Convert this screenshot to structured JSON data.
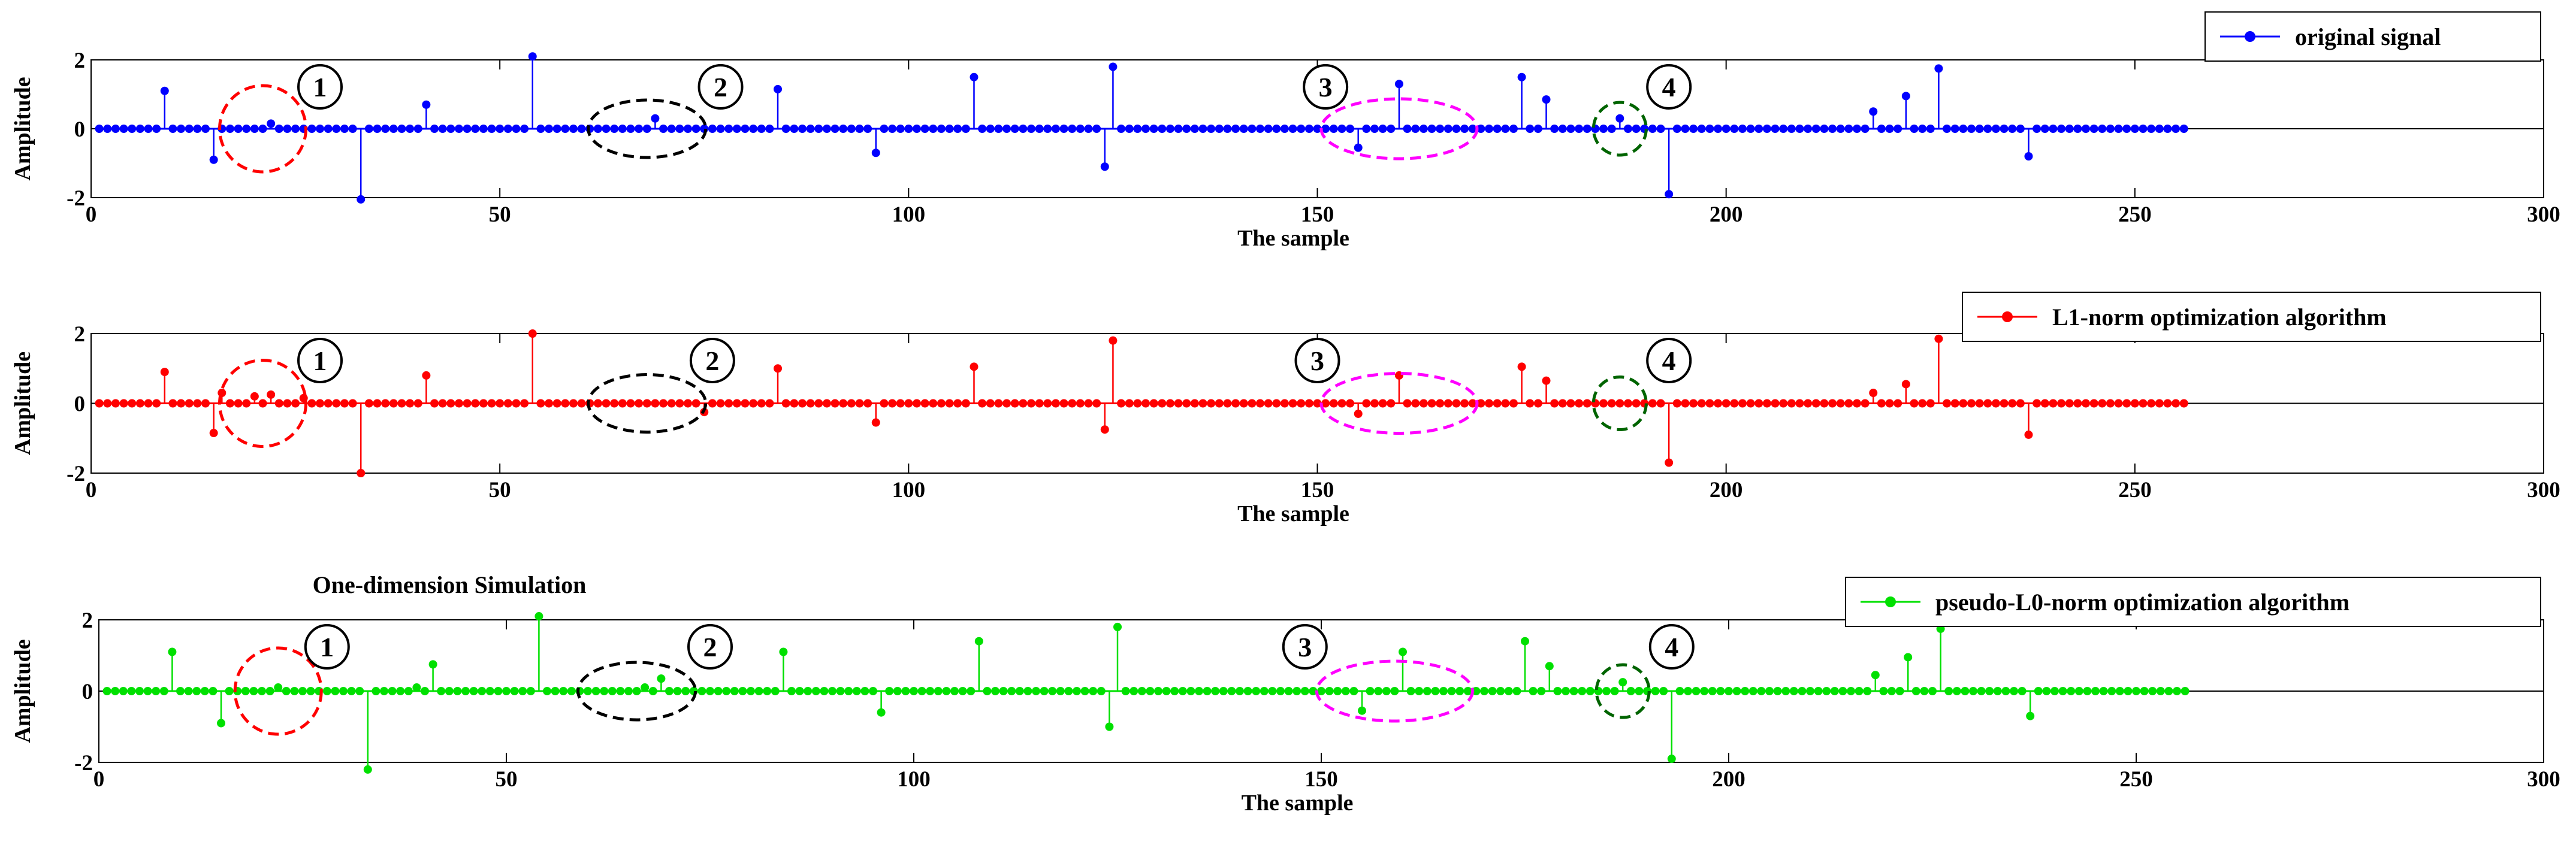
{
  "figure": {
    "title": "One-dimension Simulation"
  },
  "chart_data": [
    {
      "type": "stem",
      "xlabel": "The sample",
      "ylabel": "Amplitude",
      "xlim": [
        0,
        300
      ],
      "ylim": [
        -2,
        2
      ],
      "xticks": [
        "0",
        "50",
        "100",
        "150",
        "200",
        "250",
        "300"
      ],
      "yticks": [
        "-2",
        "0",
        "2"
      ],
      "legend": "original signal",
      "legend_position": "top-right",
      "color": "#0000ff",
      "n_samples": 256,
      "spikes": [
        {
          "x": 9,
          "y": 1.1
        },
        {
          "x": 15,
          "y": -0.9
        },
        {
          "x": 22,
          "y": 0.15
        },
        {
          "x": 33,
          "y": -2.05
        },
        {
          "x": 41,
          "y": 0.7
        },
        {
          "x": 54,
          "y": 2.1
        },
        {
          "x": 69,
          "y": 0.3
        },
        {
          "x": 84,
          "y": 1.15
        },
        {
          "x": 96,
          "y": -0.7
        },
        {
          "x": 108,
          "y": 1.5
        },
        {
          "x": 124,
          "y": -1.1
        },
        {
          "x": 125,
          "y": 1.8
        },
        {
          "x": 155,
          "y": -0.55
        },
        {
          "x": 160,
          "y": 1.3
        },
        {
          "x": 175,
          "y": 1.5
        },
        {
          "x": 178,
          "y": 0.85
        },
        {
          "x": 187,
          "y": 0.3
        },
        {
          "x": 193,
          "y": -1.9
        },
        {
          "x": 218,
          "y": 0.5
        },
        {
          "x": 222,
          "y": 0.95
        },
        {
          "x": 226,
          "y": 1.75
        },
        {
          "x": 237,
          "y": -0.8
        }
      ],
      "annotations": [
        "1",
        "2",
        "3",
        "4"
      ]
    },
    {
      "type": "stem",
      "xlabel": "The sample",
      "ylabel": "Amplitude",
      "xlim": [
        0,
        300
      ],
      "ylim": [
        -2,
        2
      ],
      "xticks": [
        "0",
        "50",
        "100",
        "150",
        "200",
        "250",
        "300"
      ],
      "yticks": [
        "-2",
        "0",
        "2"
      ],
      "legend": "L1-norm optimization algorithm",
      "legend_position": "top-right",
      "color": "#ff0000",
      "n_samples": 256,
      "spikes": [
        {
          "x": 9,
          "y": 0.9
        },
        {
          "x": 15,
          "y": -0.85
        },
        {
          "x": 16,
          "y": 0.3
        },
        {
          "x": 20,
          "y": 0.2
        },
        {
          "x": 22,
          "y": 0.25
        },
        {
          "x": 26,
          "y": 0.15
        },
        {
          "x": 33,
          "y": -2.0
        },
        {
          "x": 41,
          "y": 0.8
        },
        {
          "x": 54,
          "y": 2.0
        },
        {
          "x": 75,
          "y": -0.25
        },
        {
          "x": 84,
          "y": 1.0
        },
        {
          "x": 96,
          "y": -0.55
        },
        {
          "x": 108,
          "y": 1.05
        },
        {
          "x": 124,
          "y": -0.75
        },
        {
          "x": 125,
          "y": 1.8
        },
        {
          "x": 155,
          "y": -0.3
        },
        {
          "x": 160,
          "y": 0.8
        },
        {
          "x": 175,
          "y": 1.05
        },
        {
          "x": 178,
          "y": 0.65
        },
        {
          "x": 193,
          "y": -1.7
        },
        {
          "x": 218,
          "y": 0.3
        },
        {
          "x": 222,
          "y": 0.55
        },
        {
          "x": 226,
          "y": 1.85
        },
        {
          "x": 237,
          "y": -0.9
        }
      ],
      "annotations": [
        "1",
        "2",
        "3",
        "4"
      ]
    },
    {
      "type": "stem",
      "title": "One-dimension Simulation",
      "xlabel": "The sample",
      "ylabel": "Amplitude",
      "xlim": [
        0,
        300
      ],
      "ylim": [
        -2,
        2
      ],
      "xticks": [
        "0",
        "50",
        "100",
        "150",
        "200",
        "250",
        "300"
      ],
      "yticks": [
        "-2",
        "0",
        "2"
      ],
      "legend": "pseudo-L0-norm optimization algorithm",
      "legend_position": "top-right",
      "color": "#00e000",
      "n_samples": 256,
      "spikes": [
        {
          "x": 9,
          "y": 1.1
        },
        {
          "x": 15,
          "y": -0.9
        },
        {
          "x": 22,
          "y": 0.1
        },
        {
          "x": 33,
          "y": -2.2
        },
        {
          "x": 39,
          "y": 0.1
        },
        {
          "x": 41,
          "y": 0.75
        },
        {
          "x": 54,
          "y": 2.1
        },
        {
          "x": 67,
          "y": 0.1
        },
        {
          "x": 69,
          "y": 0.35
        },
        {
          "x": 84,
          "y": 1.1
        },
        {
          "x": 96,
          "y": -0.6
        },
        {
          "x": 108,
          "y": 1.4
        },
        {
          "x": 124,
          "y": -1.0
        },
        {
          "x": 125,
          "y": 1.8
        },
        {
          "x": 155,
          "y": -0.55
        },
        {
          "x": 160,
          "y": 1.1
        },
        {
          "x": 175,
          "y": 1.4
        },
        {
          "x": 178,
          "y": 0.7
        },
        {
          "x": 187,
          "y": 0.25
        },
        {
          "x": 193,
          "y": -1.9
        },
        {
          "x": 218,
          "y": 0.45
        },
        {
          "x": 222,
          "y": 0.95
        },
        {
          "x": 226,
          "y": 1.75
        },
        {
          "x": 237,
          "y": -0.7
        }
      ],
      "annotations": [
        "1",
        "2",
        "3",
        "4"
      ]
    }
  ]
}
